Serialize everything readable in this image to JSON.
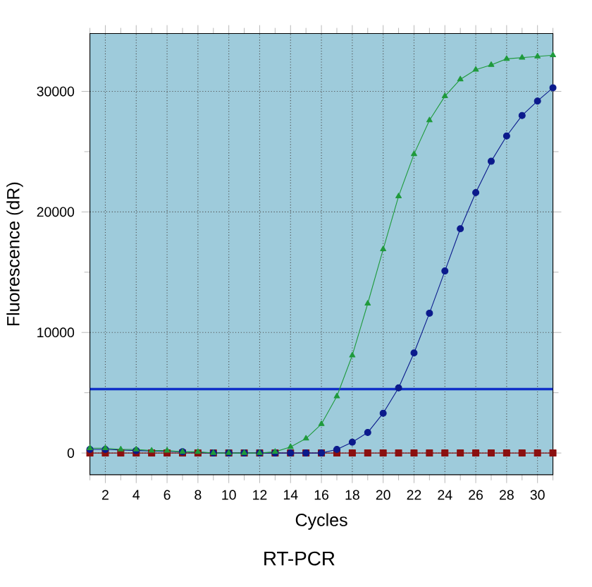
{
  "chart_data": {
    "type": "line",
    "xlabel": "Cycles",
    "ylabel": "Fluorescence (dR)",
    "annotations": [
      "RT-PCR"
    ],
    "x": [
      1,
      2,
      3,
      4,
      5,
      6,
      7,
      8,
      9,
      10,
      11,
      12,
      13,
      14,
      15,
      16,
      17,
      18,
      19,
      20,
      21,
      22,
      23,
      24,
      25,
      26,
      27,
      28,
      29,
      30,
      31
    ],
    "series": [
      {
        "color": "#1f9a3c",
        "marker": "triangle",
        "values": [
          400,
          400,
          300,
          300,
          200,
          200,
          100,
          100,
          0,
          0,
          0,
          0,
          100,
          500,
          1200,
          2400,
          4700,
          8100,
          12400,
          16900,
          21300,
          24800,
          27600,
          29600,
          31000,
          31800,
          32200,
          32700,
          32800,
          32900,
          33000
        ]
      },
      {
        "color": "#0b1a8c",
        "marker": "circle",
        "values": [
          300,
          300,
          null,
          200,
          null,
          null,
          100,
          null,
          0,
          0,
          0,
          0,
          0,
          0,
          0,
          0,
          300,
          900,
          1700,
          3300,
          5400,
          8300,
          11600,
          15100,
          18600,
          21600,
          24200,
          26300,
          28000,
          29200,
          30300
        ]
      },
      {
        "color": "#8b1010",
        "marker": "square",
        "values": [
          0,
          0,
          0,
          0,
          0,
          0,
          0,
          0,
          0,
          0,
          0,
          0,
          0,
          0,
          0,
          0,
          0,
          0,
          0,
          0,
          0,
          0,
          0,
          0,
          0,
          0,
          0,
          0,
          0,
          0,
          0
        ]
      }
    ],
    "ref_lines": [
      {
        "axis": "y",
        "value": 5300,
        "color": "#1030c8",
        "line_style": "solid"
      }
    ],
    "xlim": [
      1,
      31
    ],
    "xticks": [
      {
        "value": 1,
        "label": null
      },
      2,
      {
        "value": 3,
        "label": null
      },
      4,
      {
        "value": 5,
        "label": null
      },
      6,
      {
        "value": 7,
        "label": null
      },
      8,
      {
        "value": 9,
        "label": null
      },
      10,
      {
        "value": 11,
        "label": null
      },
      12,
      {
        "value": 13,
        "label": null
      },
      14,
      {
        "value": 15,
        "label": null
      },
      16,
      {
        "value": 17,
        "label": null
      },
      18,
      {
        "value": 19,
        "label": null
      },
      20,
      {
        "value": 21,
        "label": null
      },
      22,
      {
        "value": 23,
        "label": null
      },
      24,
      {
        "value": 25,
        "label": null
      },
      26,
      {
        "value": 27,
        "label": null
      },
      28,
      {
        "value": 29,
        "label": null
      },
      30,
      {
        "value": 31,
        "label": null
      }
    ],
    "ylim": [
      -1800,
      34800
    ],
    "yticks": [
      0,
      {
        "value": 5000,
        "label": null
      },
      10000,
      {
        "value": 15000,
        "label": null
      },
      20000,
      {
        "value": 25000,
        "label": null
      },
      30000
    ],
    "grid": true
  }
}
